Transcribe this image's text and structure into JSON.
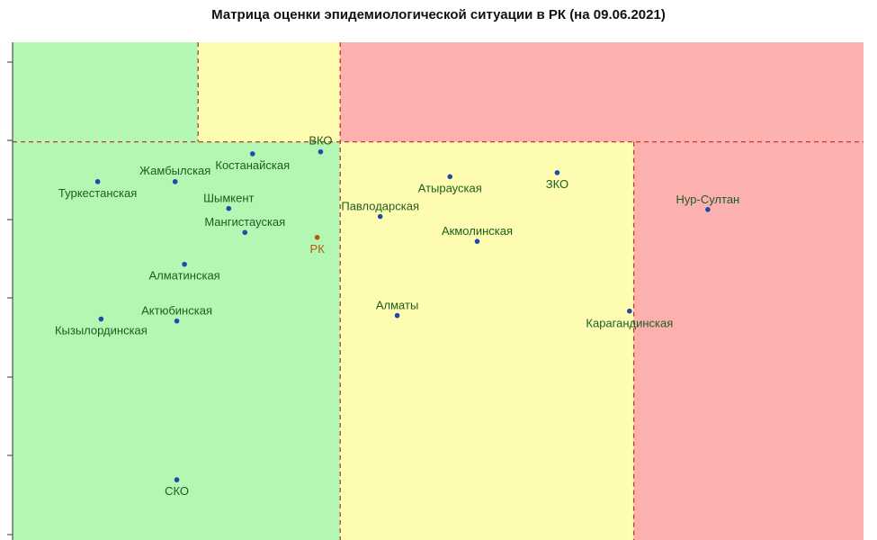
{
  "title": "Матрица оценки эпидемиологической ситуации в РК (на 09.06.2021)",
  "colors": {
    "green_zone": "#b3f7b3",
    "yellow_zone": "#fdfcb0",
    "red_zone": "#fdb0b0",
    "divider": "#c0392b",
    "point": "#1f4aa8",
    "point_rk": "#b05a10",
    "label": "#1b5e20",
    "label_rk": "#b05a10"
  },
  "chart_data": {
    "type": "scatter",
    "title": "Матрица оценки эпидемиологической ситуации в РК (на 09.06.2021)",
    "xlabel": "",
    "ylabel": "",
    "x_range": [
      0,
      1
    ],
    "y_range": [
      0,
      1
    ],
    "grid": false,
    "thresholds": {
      "x1": 0.385,
      "x2": 0.73,
      "y": 0.8
    },
    "points": [
      {
        "name": "ВКО",
        "x": 0.362,
        "y": 0.78
      },
      {
        "name": "Костанайская",
        "x": 0.282,
        "y": 0.776
      },
      {
        "name": "ЗКО",
        "x": 0.64,
        "y": 0.738
      },
      {
        "name": "Жамбылская",
        "x": 0.191,
        "y": 0.72
      },
      {
        "name": "Атырауская",
        "x": 0.514,
        "y": 0.73
      },
      {
        "name": "Туркестанская",
        "x": 0.1,
        "y": 0.72
      },
      {
        "name": "Нур-Султан",
        "x": 0.817,
        "y": 0.664
      },
      {
        "name": "Шымкент",
        "x": 0.254,
        "y": 0.666
      },
      {
        "name": "Павлодарская",
        "x": 0.432,
        "y": 0.65
      },
      {
        "name": "Мангистауская",
        "x": 0.273,
        "y": 0.618
      },
      {
        "name": "РК",
        "x": 0.358,
        "y": 0.608
      },
      {
        "name": "Акмолинская",
        "x": 0.546,
        "y": 0.6
      },
      {
        "name": "Алматинская",
        "x": 0.202,
        "y": 0.554
      },
      {
        "name": "Актюбинская",
        "x": 0.193,
        "y": 0.44
      },
      {
        "name": "Кызылординская",
        "x": 0.104,
        "y": 0.444
      },
      {
        "name": "Алматы",
        "x": 0.452,
        "y": 0.451
      },
      {
        "name": "Карагандинская",
        "x": 0.725,
        "y": 0.46
      },
      {
        "name": "СКО",
        "x": 0.193,
        "y": 0.121
      }
    ]
  }
}
